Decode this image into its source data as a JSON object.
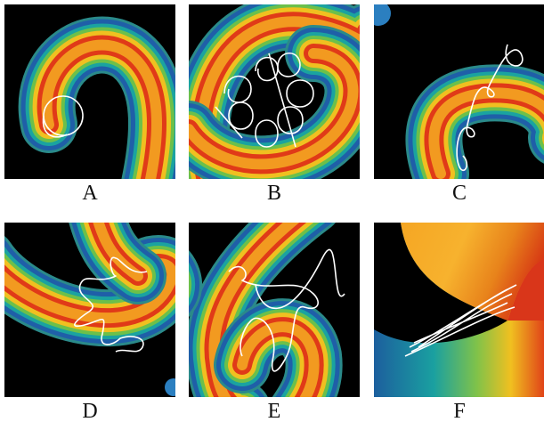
{
  "figure": {
    "panels": [
      {
        "label": "A"
      },
      {
        "label": "B"
      },
      {
        "label": "C"
      },
      {
        "label": "D"
      },
      {
        "label": "E"
      },
      {
        "label": "F"
      }
    ]
  }
}
